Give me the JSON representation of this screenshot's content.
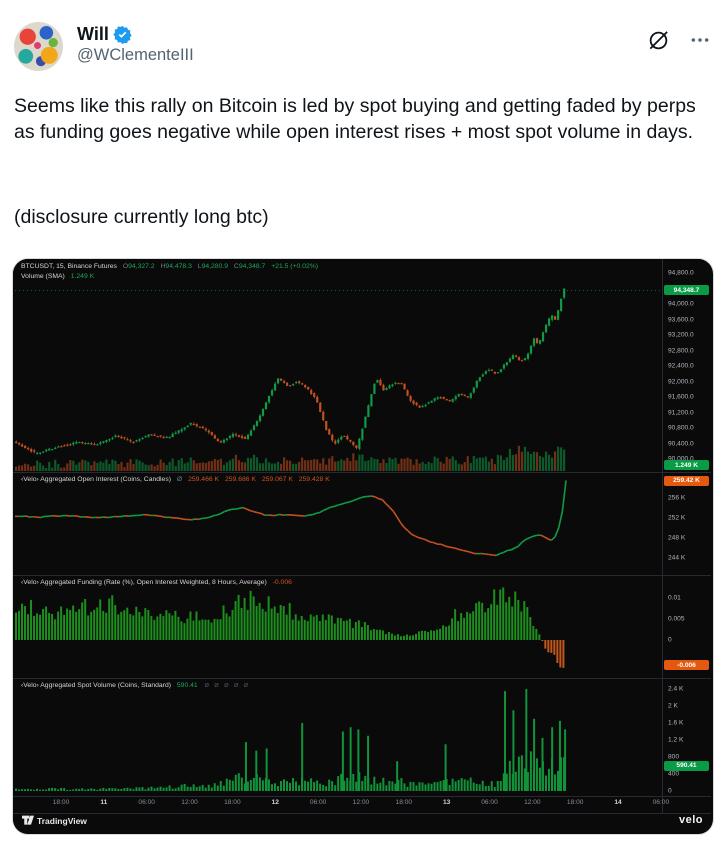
{
  "tweet": {
    "display_name": "Will",
    "handle": "@WClementeIII",
    "verified": true,
    "body": "Seems like this rally on Bitcoin is led by spot buying and getting faded by perps as funding goes negative while open interest rises + most spot volume in days.",
    "disclosure": "(disclosure currently long btc)"
  },
  "chart": {
    "legend1": {
      "symbol": "BTCUSDT, 15, Binance Futures",
      "o_key": "O",
      "o": "94,327.2",
      "h_key": "H",
      "h": "94,478.3",
      "l_key": "L",
      "l": "94,280.9",
      "c_key": "C",
      "c": "94,348.7",
      "change": "+21.5 (+0.02%)"
    },
    "legend_volume": {
      "label": "Volume (SMA)",
      "value": "1.249 K"
    },
    "legend_oi": {
      "label": "‹Velo› Aggregated Open Interest (Coins, Candles)",
      "marker": "Ø",
      "o": "259.466 K",
      "h": "259.686 K",
      "l": "259.067 K",
      "c": "259.428 K"
    },
    "legend_funding": {
      "label": "‹Velo› Aggregated Funding (Rate (%), Open Interest Weighted, 8 Hours, Average)",
      "value": "-0.006"
    },
    "legend_spot": {
      "label": "‹Velo› Aggregated Spot Volume (Coins, Standard)",
      "value": "590.41",
      "actions": "Ø Ø Ø Ø Ø"
    },
    "brand_left": "TradingView",
    "brand_right": "velo",
    "colors": {
      "up": "#109a46",
      "down": "#c2511f",
      "funding_pos": "#1d8f1d",
      "funding_neg": "#c2571c",
      "spot": "#12933a",
      "badge_green": "#0a9b47",
      "badge_orange": "#e4590e",
      "grid": "#262b33",
      "price_line": "#0e7d3c",
      "axis_text": "#b4b7bf"
    }
  },
  "chart_data": {
    "type": "multi-panel-financial",
    "panels": [
      {
        "type": "candlestick",
        "name": "price",
        "title": "BTCUSDT, 15, Binance Futures",
        "ohlc": {
          "open": 94327.2,
          "high": 94478.3,
          "low": 94280.9,
          "close": 94348.7,
          "change": "+21.5 (+0.02%)"
        },
        "last_price": 94348.7,
        "volume_sma": "1.249 K",
        "ylim": [
          89900,
          94950
        ],
        "ticks": [
          {
            "v": 94800,
            "label": "94,800.0"
          },
          {
            "v": 94000,
            "label": "94,000.0"
          },
          {
            "v": 93600,
            "label": "93,600.0"
          },
          {
            "v": 93200,
            "label": "93,200.0"
          },
          {
            "v": 92800,
            "label": "92,800.0"
          },
          {
            "v": 92400,
            "label": "92,400.0"
          },
          {
            "v": 92000,
            "label": "92,000.0"
          },
          {
            "v": 91600,
            "label": "91,600.0"
          },
          {
            "v": 91200,
            "label": "91,200.0"
          },
          {
            "v": 90800,
            "label": "90,800.0"
          },
          {
            "v": 90400,
            "label": "90,400.0"
          },
          {
            "v": 90000,
            "label": "90,000.0"
          }
        ],
        "badges": [
          {
            "label": "94,348.7",
            "v": 94348.7,
            "color": "green"
          },
          {
            "label": "1.249 K",
            "y_override": 206,
            "color": "green"
          }
        ],
        "keypoints": [
          [
            0,
            90450
          ],
          [
            0.035,
            90150
          ],
          [
            0.07,
            90320
          ],
          [
            0.1,
            90430
          ],
          [
            0.13,
            90380
          ],
          [
            0.16,
            90600
          ],
          [
            0.185,
            90430
          ],
          [
            0.21,
            90630
          ],
          [
            0.24,
            90560
          ],
          [
            0.275,
            90920
          ],
          [
            0.3,
            90740
          ],
          [
            0.32,
            90400
          ],
          [
            0.34,
            90640
          ],
          [
            0.36,
            90520
          ],
          [
            0.38,
            91050
          ],
          [
            0.395,
            91600
          ],
          [
            0.41,
            92080
          ],
          [
            0.425,
            91880
          ],
          [
            0.44,
            92000
          ],
          [
            0.455,
            91830
          ],
          [
            0.47,
            91500
          ],
          [
            0.485,
            90750
          ],
          [
            0.497,
            90380
          ],
          [
            0.51,
            90620
          ],
          [
            0.52,
            90470
          ],
          [
            0.532,
            90260
          ],
          [
            0.548,
            91250
          ],
          [
            0.562,
            92120
          ],
          [
            0.573,
            91760
          ],
          [
            0.585,
            91930
          ],
          [
            0.6,
            91980
          ],
          [
            0.615,
            91500
          ],
          [
            0.63,
            91320
          ],
          [
            0.645,
            91480
          ],
          [
            0.66,
            91620
          ],
          [
            0.675,
            91480
          ],
          [
            0.69,
            91680
          ],
          [
            0.705,
            91580
          ],
          [
            0.72,
            92080
          ],
          [
            0.735,
            92330
          ],
          [
            0.748,
            92180
          ],
          [
            0.762,
            92470
          ],
          [
            0.775,
            92700
          ],
          [
            0.785,
            92520
          ],
          [
            0.795,
            92630
          ],
          [
            0.806,
            93120
          ],
          [
            0.813,
            92930
          ],
          [
            0.824,
            93420
          ],
          [
            0.833,
            93720
          ],
          [
            0.84,
            93560
          ],
          [
            0.847,
            94080
          ],
          [
            0.853,
            94400
          ]
        ],
        "data_end": 0.853
      },
      {
        "type": "candlestick",
        "name": "open_interest",
        "title": "Aggregated Open Interest (Coins, Candles)",
        "unit": "K",
        "ohlc_k": {
          "open": 259.466,
          "high": 259.686,
          "low": 259.067,
          "close": 259.428
        },
        "ticks": [
          {
            "v": 256,
            "label": "256 K"
          },
          {
            "v": 252,
            "label": "252 K"
          },
          {
            "v": 248,
            "label": "248 K"
          },
          {
            "v": 244,
            "label": "244 K"
          }
        ],
        "badge": {
          "label": "259.42 K",
          "v": 259.42,
          "color": "orange"
        },
        "keypoints": [
          [
            0,
            252.4
          ],
          [
            0.04,
            252.2
          ],
          [
            0.08,
            252.5
          ],
          [
            0.12,
            252.0
          ],
          [
            0.16,
            252.35
          ],
          [
            0.2,
            252.6
          ],
          [
            0.24,
            252.15
          ],
          [
            0.27,
            251.7
          ],
          [
            0.3,
            252.0
          ],
          [
            0.33,
            253.6
          ],
          [
            0.35,
            254.1
          ],
          [
            0.37,
            253.2
          ],
          [
            0.39,
            252.5
          ],
          [
            0.42,
            252.7
          ],
          [
            0.45,
            252.4
          ],
          [
            0.47,
            253.0
          ],
          [
            0.49,
            254.2
          ],
          [
            0.51,
            255.0
          ],
          [
            0.53,
            255.8
          ],
          [
            0.55,
            256.5
          ],
          [
            0.57,
            255.5
          ],
          [
            0.585,
            253.5
          ],
          [
            0.6,
            250.5
          ],
          [
            0.615,
            248.6
          ],
          [
            0.63,
            247.8
          ],
          [
            0.65,
            247.0
          ],
          [
            0.67,
            246.3
          ],
          [
            0.69,
            245.6
          ],
          [
            0.71,
            245.0
          ],
          [
            0.73,
            244.8
          ],
          [
            0.745,
            244.6
          ],
          [
            0.76,
            245.4
          ],
          [
            0.775,
            246.0
          ],
          [
            0.79,
            247.6
          ],
          [
            0.8,
            248.2
          ],
          [
            0.81,
            248.7
          ],
          [
            0.82,
            248.1
          ],
          [
            0.83,
            247.5
          ],
          [
            0.838,
            248.3
          ],
          [
            0.845,
            251.5
          ],
          [
            0.85,
            255.5
          ],
          [
            0.853,
            259.4
          ]
        ],
        "data_end": 0.853
      },
      {
        "type": "bar",
        "name": "funding",
        "title": "Aggregated Funding (Rate (%), Open Interest Weighted, 8 Hours, Average)",
        "current": -0.006,
        "ticks": [
          {
            "v": 0.01,
            "label": "0.01"
          },
          {
            "v": 0.005,
            "label": "0.005"
          },
          {
            "v": 0,
            "label": "0"
          }
        ],
        "badge": {
          "label": "-0.006",
          "v": -0.006,
          "color": "orange"
        },
        "keypoints": [
          [
            0,
            0.007
          ],
          [
            0.03,
            0.0078
          ],
          [
            0.06,
            0.0062
          ],
          [
            0.09,
            0.0075
          ],
          [
            0.12,
            0.008
          ],
          [
            0.15,
            0.0088
          ],
          [
            0.17,
            0.007
          ],
          [
            0.2,
            0.0062
          ],
          [
            0.23,
            0.006
          ],
          [
            0.26,
            0.0052
          ],
          [
            0.28,
            0.006
          ],
          [
            0.3,
            0.0055
          ],
          [
            0.33,
            0.0075
          ],
          [
            0.36,
            0.0098
          ],
          [
            0.38,
            0.0085
          ],
          [
            0.4,
            0.008
          ],
          [
            0.42,
            0.0072
          ],
          [
            0.44,
            0.006
          ],
          [
            0.46,
            0.0055
          ],
          [
            0.48,
            0.005
          ],
          [
            0.5,
            0.0045
          ],
          [
            0.52,
            0.004
          ],
          [
            0.54,
            0.0035
          ],
          [
            0.56,
            0.0028
          ],
          [
            0.58,
            0.0015
          ],
          [
            0.6,
            0.0008
          ],
          [
            0.62,
            0.0018
          ],
          [
            0.64,
            0.0025
          ],
          [
            0.66,
            0.0035
          ],
          [
            0.68,
            0.0058
          ],
          [
            0.7,
            0.0068
          ],
          [
            0.715,
            0.0078
          ],
          [
            0.73,
            0.0088
          ],
          [
            0.745,
            0.0098
          ],
          [
            0.755,
            0.0108
          ],
          [
            0.765,
            0.0095
          ],
          [
            0.773,
            0.0105
          ],
          [
            0.78,
            0.009
          ],
          [
            0.787,
            0.0075
          ],
          [
            0.793,
            0.006
          ],
          [
            0.8,
            0.0042
          ],
          [
            0.807,
            0.0025
          ],
          [
            0.812,
            0.001
          ],
          [
            0.817,
            -0.0012
          ],
          [
            0.823,
            -0.0022
          ],
          [
            0.83,
            -0.0035
          ],
          [
            0.837,
            -0.0046
          ],
          [
            0.843,
            -0.0054
          ],
          [
            0.85,
            -0.006
          ]
        ],
        "data_end": 0.852
      },
      {
        "type": "bar",
        "name": "spot_volume",
        "title": "Aggregated Spot Volume (Coins, Standard)",
        "current": 590.41,
        "ticks": [
          {
            "v": 2400,
            "label": "2.4 K"
          },
          {
            "v": 2000,
            "label": "2 K"
          },
          {
            "v": 1600,
            "label": "1.6 K"
          },
          {
            "v": 1200,
            "label": "1.2 K"
          },
          {
            "v": 800,
            "label": "800"
          },
          {
            "v": 400,
            "label": "400"
          },
          {
            "v": 0,
            "label": "0"
          }
        ],
        "badge": {
          "label": "590.41",
          "v": 590.41,
          "color": "green"
        },
        "keypoints": [
          [
            0,
            60
          ],
          [
            0.03,
            45
          ],
          [
            0.06,
            75
          ],
          [
            0.09,
            55
          ],
          [
            0.12,
            70
          ],
          [
            0.15,
            90
          ],
          [
            0.18,
            75
          ],
          [
            0.21,
            100
          ],
          [
            0.24,
            130
          ],
          [
            0.265,
            170
          ],
          [
            0.29,
            140
          ],
          [
            0.31,
            190
          ],
          [
            0.33,
            300
          ],
          [
            0.35,
            420
          ],
          [
            0.365,
            380
          ],
          [
            0.38,
            350
          ],
          [
            0.4,
            280
          ],
          [
            0.42,
            240
          ],
          [
            0.435,
            330
          ],
          [
            0.45,
            300
          ],
          [
            0.47,
            240
          ],
          [
            0.49,
            280
          ],
          [
            0.505,
            400
          ],
          [
            0.52,
            430
          ],
          [
            0.535,
            400
          ],
          [
            0.55,
            350
          ],
          [
            0.57,
            280
          ],
          [
            0.59,
            320
          ],
          [
            0.61,
            230
          ],
          [
            0.63,
            190
          ],
          [
            0.65,
            240
          ],
          [
            0.665,
            330
          ],
          [
            0.68,
            260
          ],
          [
            0.7,
            300
          ],
          [
            0.72,
            260
          ],
          [
            0.74,
            240
          ],
          [
            0.752,
            420
          ],
          [
            0.762,
            700
          ],
          [
            0.772,
            850
          ],
          [
            0.782,
            950
          ],
          [
            0.792,
            1000
          ],
          [
            0.802,
            820
          ],
          [
            0.812,
            700
          ],
          [
            0.822,
            640
          ],
          [
            0.832,
            720
          ],
          [
            0.842,
            900
          ],
          [
            0.85,
            800
          ]
        ],
        "spikes": [
          [
            0.356,
            1150
          ],
          [
            0.372,
            950
          ],
          [
            0.388,
            1000
          ],
          [
            0.443,
            1600
          ],
          [
            0.506,
            1400
          ],
          [
            0.518,
            1500
          ],
          [
            0.53,
            1450
          ],
          [
            0.545,
            1300
          ],
          [
            0.59,
            700
          ],
          [
            0.665,
            1100
          ],
          [
            0.757,
            2350
          ],
          [
            0.77,
            1900
          ],
          [
            0.79,
            2400
          ],
          [
            0.802,
            1700
          ],
          [
            0.815,
            1250
          ],
          [
            0.83,
            1500
          ],
          [
            0.842,
            1650
          ],
          [
            0.85,
            1450
          ]
        ],
        "data_end": 0.853
      }
    ],
    "x_axis": {
      "labels": [
        {
          "t": "18:00",
          "major": false
        },
        {
          "t": "11",
          "major": true
        },
        {
          "t": "06:00",
          "major": false
        },
        {
          "t": "12:00",
          "major": false
        },
        {
          "t": "18:00",
          "major": false
        },
        {
          "t": "12",
          "major": true
        },
        {
          "t": "06:00",
          "major": false
        },
        {
          "t": "12:00",
          "major": false
        },
        {
          "t": "18:00",
          "major": false
        },
        {
          "t": "13",
          "major": true
        },
        {
          "t": "06:00",
          "major": false
        },
        {
          "t": "12:00",
          "major": false
        },
        {
          "t": "18:00",
          "major": false
        },
        {
          "t": "14",
          "major": true
        },
        {
          "t": "06:00",
          "major": false
        }
      ]
    }
  }
}
